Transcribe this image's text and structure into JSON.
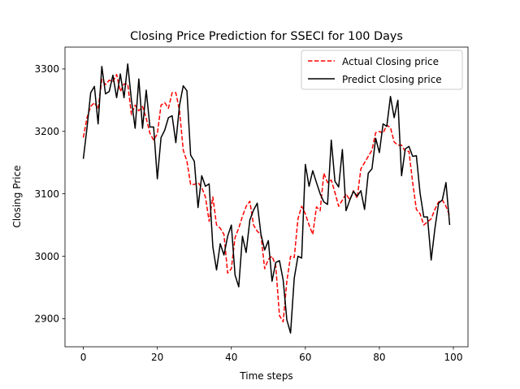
{
  "chart_data": {
    "type": "line",
    "title": "Closing Price Prediction for SSECI for 100 Days",
    "xlabel": "Time steps",
    "ylabel": "Closing Price",
    "xlim": [
      -4.95,
      103.95
    ],
    "ylim": [
      2855,
      3335
    ],
    "xticks": [
      0,
      20,
      40,
      60,
      80,
      100
    ],
    "yticks": [
      2900,
      3000,
      3100,
      3200,
      3300
    ],
    "grid": false,
    "legend_position": "top-right",
    "series": [
      {
        "name": "Actual Closing price",
        "color": "#ff0000",
        "dash": "dashed",
        "x": [
          0,
          1,
          2,
          3,
          4,
          5,
          6,
          7,
          8,
          9,
          10,
          11,
          12,
          13,
          14,
          15,
          16,
          17,
          18,
          19,
          20,
          21,
          22,
          23,
          24,
          25,
          26,
          27,
          28,
          29,
          30,
          31,
          32,
          33,
          34,
          35,
          36,
          37,
          38,
          39,
          40,
          41,
          42,
          43,
          44,
          45,
          46,
          47,
          48,
          49,
          50,
          51,
          52,
          53,
          54,
          55,
          56,
          57,
          58,
          59,
          60,
          61,
          62,
          63,
          64,
          65,
          66,
          67,
          68,
          69,
          70,
          71,
          72,
          73,
          74,
          75,
          76,
          77,
          78,
          79,
          80,
          81,
          82,
          83,
          84,
          85,
          86,
          87,
          88,
          89,
          90,
          91,
          92,
          93,
          94,
          95,
          96,
          97,
          98,
          99
        ],
        "values": [
          3190,
          3222,
          3240,
          3246,
          3236,
          3283,
          3275,
          3282,
          3280,
          3291,
          3264,
          3276,
          3276,
          3227,
          3242,
          3233,
          3240,
          3221,
          3197,
          3186,
          3196,
          3242,
          3246,
          3237,
          3262,
          3262,
          3233,
          3170,
          3152,
          3115,
          3115,
          3118,
          3110,
          3095,
          3056,
          3095,
          3050,
          3045,
          3035,
          2973,
          2980,
          3030,
          3045,
          3064,
          3080,
          3088,
          3050,
          3040,
          3035,
          2980,
          2995,
          3000,
          2985,
          2905,
          2895,
          2960,
          3000,
          2998,
          3060,
          3080,
          3068,
          3050,
          3035,
          3079,
          3073,
          3133,
          3118,
          3122,
          3102,
          3080,
          3090,
          3100,
          3090,
          3105,
          3093,
          3140,
          3150,
          3160,
          3170,
          3198,
          3200,
          3197,
          3210,
          3206,
          3183,
          3178,
          3178,
          3168,
          3168,
          3118,
          3075,
          3068,
          3050,
          3055,
          3060,
          3075,
          3087,
          3090,
          3080,
          3065
        ]
      },
      {
        "name": "Predict Closing price",
        "color": "#000000",
        "dash": "solid",
        "x": [
          0,
          1,
          2,
          3,
          4,
          5,
          6,
          7,
          8,
          9,
          10,
          11,
          12,
          13,
          14,
          15,
          16,
          17,
          18,
          19,
          20,
          21,
          22,
          23,
          24,
          25,
          26,
          27,
          28,
          29,
          30,
          31,
          32,
          33,
          34,
          35,
          36,
          37,
          38,
          39,
          40,
          41,
          42,
          43,
          44,
          45,
          46,
          47,
          48,
          49,
          50,
          51,
          52,
          53,
          54,
          55,
          56,
          57,
          58,
          59,
          60,
          61,
          62,
          63,
          64,
          65,
          66,
          67,
          68,
          69,
          70,
          71,
          72,
          73,
          74,
          75,
          76,
          77,
          78,
          79,
          80,
          81,
          82,
          83,
          84,
          85,
          86,
          87,
          88,
          89,
          90,
          91,
          92,
          93,
          94,
          95,
          96,
          97,
          98,
          99
        ],
        "values": [
          3156,
          3206,
          3262,
          3272,
          3212,
          3304,
          3260,
          3264,
          3290,
          3254,
          3292,
          3254,
          3308,
          3250,
          3205,
          3284,
          3205,
          3266,
          3207,
          3207,
          3124,
          3190,
          3202,
          3222,
          3225,
          3182,
          3242,
          3273,
          3265,
          3162,
          3152,
          3078,
          3129,
          3112,
          3116,
          3015,
          2978,
          3020,
          3002,
          3032,
          3050,
          2970,
          2951,
          3032,
          3006,
          3058,
          3074,
          3085,
          3035,
          3010,
          3025,
          2960,
          2990,
          2993,
          2962,
          2898,
          2877,
          2965,
          3000,
          2997,
          3147,
          3112,
          3137,
          3118,
          3100,
          3087,
          3083,
          3186,
          3120,
          3111,
          3171,
          3073,
          3090,
          3104,
          3096,
          3105,
          3075,
          3133,
          3140,
          3189,
          3166,
          3212,
          3208,
          3256,
          3222,
          3250,
          3129,
          3172,
          3176,
          3160,
          3161,
          3101,
          3063,
          3063,
          2994,
          3044,
          3085,
          3090,
          3118,
          3050
        ]
      }
    ]
  }
}
